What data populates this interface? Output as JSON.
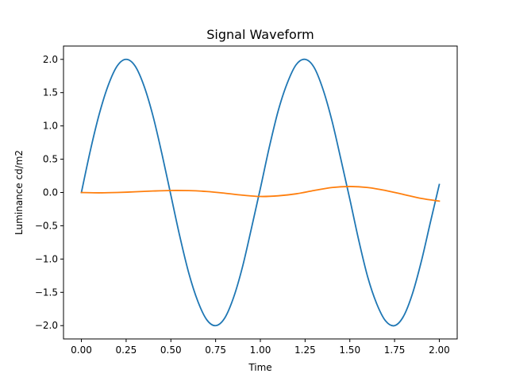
{
  "chart_data": {
    "type": "line",
    "title": "Signal Waveform",
    "xlabel": "Time",
    "ylabel": "Luminance cd/m2",
    "xlim": [
      -0.1,
      2.1
    ],
    "ylim": [
      -2.2,
      2.2
    ],
    "grid": false,
    "x_ticks": [
      0.0,
      0.25,
      0.5,
      0.75,
      1.0,
      1.25,
      1.5,
      1.75,
      2.0
    ],
    "x_tick_labels": [
      "0.00",
      "0.25",
      "0.50",
      "0.75",
      "1.00",
      "1.25",
      "1.50",
      "1.75",
      "2.00"
    ],
    "y_ticks": [
      -2.0,
      -1.5,
      -1.0,
      -0.5,
      0.0,
      0.5,
      1.0,
      1.5,
      2.0
    ],
    "y_tick_labels": [
      "−2.0",
      "−1.5",
      "−1.0",
      "−0.5",
      "0.0",
      "0.5",
      "1.0",
      "1.5",
      "2.0"
    ],
    "series": [
      {
        "color": "#1f77b4",
        "x": [
          0.0,
          0.05,
          0.1,
          0.15,
          0.2,
          0.25,
          0.3,
          0.35,
          0.4,
          0.45,
          0.5,
          0.55,
          0.6,
          0.65,
          0.7,
          0.75,
          0.8,
          0.85,
          0.9,
          0.95,
          1.0,
          1.05,
          1.1,
          1.15,
          1.2,
          1.25,
          1.3,
          1.35,
          1.4,
          1.45,
          1.5,
          1.55,
          1.6,
          1.65,
          1.7,
          1.75,
          1.8,
          1.85,
          1.9,
          1.95,
          2.0
        ],
        "y": [
          0.0,
          0.63,
          1.18,
          1.61,
          1.9,
          2.0,
          1.9,
          1.6,
          1.15,
          0.58,
          -0.04,
          -0.66,
          -1.21,
          -1.63,
          -1.91,
          -2.0,
          -1.89,
          -1.58,
          -1.12,
          -0.54,
          0.06,
          0.68,
          1.23,
          1.64,
          1.92,
          2.0,
          1.88,
          1.55,
          1.08,
          0.5,
          -0.1,
          -0.72,
          -1.27,
          -1.67,
          -1.93,
          -2.0,
          -1.86,
          -1.52,
          -1.03,
          -0.45,
          0.12
        ]
      },
      {
        "color": "#ff7f0e",
        "x": [
          0.0,
          0.1,
          0.2,
          0.3,
          0.4,
          0.5,
          0.6,
          0.7,
          0.8,
          0.9,
          1.0,
          1.1,
          1.2,
          1.3,
          1.4,
          1.5,
          1.6,
          1.7,
          1.8,
          1.9,
          2.0
        ],
        "y": [
          0.0,
          -0.005,
          0.0,
          0.01,
          0.022,
          0.03,
          0.028,
          0.015,
          -0.01,
          -0.04,
          -0.06,
          -0.05,
          -0.02,
          0.03,
          0.075,
          0.09,
          0.075,
          0.03,
          -0.03,
          -0.09,
          -0.13
        ]
      }
    ]
  }
}
